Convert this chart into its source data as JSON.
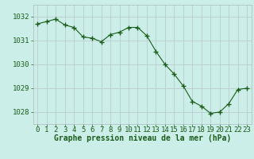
{
  "x": [
    0,
    1,
    2,
    3,
    4,
    5,
    6,
    7,
    8,
    9,
    10,
    11,
    12,
    13,
    14,
    15,
    16,
    17,
    18,
    19,
    20,
    21,
    22,
    23
  ],
  "y": [
    1031.7,
    1031.8,
    1031.9,
    1031.65,
    1031.55,
    1031.15,
    1031.1,
    1030.95,
    1031.25,
    1031.35,
    1031.55,
    1031.55,
    1031.2,
    1030.55,
    1030.0,
    1029.6,
    1029.1,
    1028.45,
    1028.25,
    1027.95,
    1028.0,
    1028.35,
    1028.95,
    1029.0
  ],
  "ylim": [
    1027.5,
    1032.5
  ],
  "yticks": [
    1028,
    1029,
    1030,
    1031,
    1032
  ],
  "xlim": [
    -0.5,
    23.5
  ],
  "xticks": [
    0,
    1,
    2,
    3,
    4,
    5,
    6,
    7,
    8,
    9,
    10,
    11,
    12,
    13,
    14,
    15,
    16,
    17,
    18,
    19,
    20,
    21,
    22,
    23
  ],
  "line_color": "#1a5c1a",
  "marker": "+",
  "marker_size": 4,
  "bg_color": "#cceee8",
  "grid_color": "#bbcccc",
  "spine_color": "#aabbbb",
  "xlabel": "Graphe pression niveau de la mer (hPa)",
  "xlabel_fontsize": 7,
  "tick_fontsize": 6.5,
  "tick_color": "#1a5c1a",
  "label_color": "#1a5c1a",
  "figwidth": 3.2,
  "figheight": 2.0,
  "dpi": 100
}
